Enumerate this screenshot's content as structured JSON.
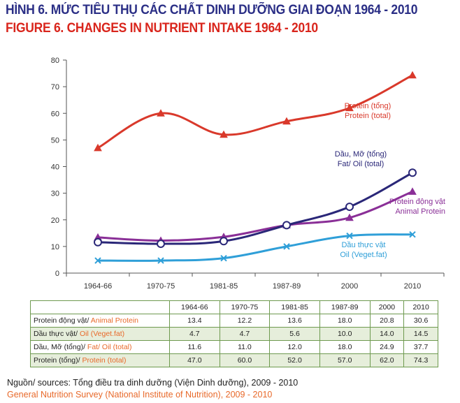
{
  "title_vn": "HÌNH 6. MỨC TIÊU THỤ CÁC CHẤT DINH DƯỠNG GIAI ĐOẠN 1964 - 2010",
  "title_en": "FIGURE 6. CHANGES IN NUTRIENT INTAKE 1964 - 2010",
  "colors": {
    "title_vn": "#2b2f86",
    "title_en": "#d9251c",
    "table_border": "#6e9a4f",
    "table_shade": "#e6eedb",
    "english_text": "#e8692a"
  },
  "chart_data": {
    "type": "line",
    "categories": [
      "1964-66",
      "1970-75",
      "1981-85",
      "1987-89",
      "2000",
      "2010"
    ],
    "ylim": [
      0,
      80
    ],
    "yticks": [
      0,
      10,
      20,
      30,
      40,
      50,
      60,
      70,
      80
    ],
    "grid": false,
    "series": [
      {
        "key": "protein_total",
        "name_vn": "Protein (tổng)",
        "name_en": "Protein (total)",
        "color": "#d9392b",
        "marker": "triangle",
        "values": [
          47.0,
          60.0,
          52.0,
          57.0,
          62.0,
          74.3
        ]
      },
      {
        "key": "fat_oil_total",
        "name_vn": "Dầu, Mỡ (tổng)",
        "name_en": "Fat/ Oil (total)",
        "color": "#2a2778",
        "marker": "circle-open",
        "values": [
          11.6,
          11.0,
          12.0,
          18.0,
          24.9,
          37.7
        ]
      },
      {
        "key": "animal_protein",
        "name_vn": "Protein động vật",
        "name_en": "Animal Protein",
        "color": "#8a2f97",
        "marker": "triangle",
        "values": [
          13.4,
          12.2,
          13.6,
          18.0,
          20.8,
          30.6
        ]
      },
      {
        "key": "veget_fat",
        "name_vn": "Dầu thực vật",
        "name_en": "Oil (Veget.fat)",
        "color": "#2f9fd8",
        "marker": "x",
        "values": [
          4.7,
          4.7,
          5.6,
          10.0,
          14.0,
          14.5
        ]
      }
    ]
  },
  "table": {
    "headers": [
      "",
      "1964-66",
      "1970-75",
      "1981-85",
      "1987-89",
      "2000",
      "2010"
    ],
    "rows": [
      {
        "label_vn": "Protein động vật/",
        "label_en": " Animal Protein",
        "values": [
          "13.4",
          "12.2",
          "13.6",
          "18.0",
          "20.8",
          "30.6"
        ]
      },
      {
        "label_vn": "Dầu thực vật/",
        "label_en": " Oil (Veget.fat)",
        "values": [
          "4.7",
          "4.7",
          "5.6",
          "10.0",
          "14.0",
          "14.5"
        ]
      },
      {
        "label_vn": "Dầu, Mỡ (tổng)/",
        "label_en": " Fat/ Oil (total)",
        "values": [
          "11.6",
          "11.0",
          "12.0",
          "18.0",
          "24.9",
          "37.7"
        ]
      },
      {
        "label_vn": "Protein (tổng)/",
        "label_en": " Protein (total)",
        "values": [
          "47.0",
          "60.0",
          "52.0",
          "57.0",
          "62.0",
          "74.3"
        ]
      }
    ]
  },
  "source_vn": "Nguồn/ sources: Tổng điều tra dinh dưỡng (Viện Dinh dưỡng), 2009 - 2010",
  "source_en": "General Nutrition Survey (National Institute of Nutrition), 2009 - 2010"
}
